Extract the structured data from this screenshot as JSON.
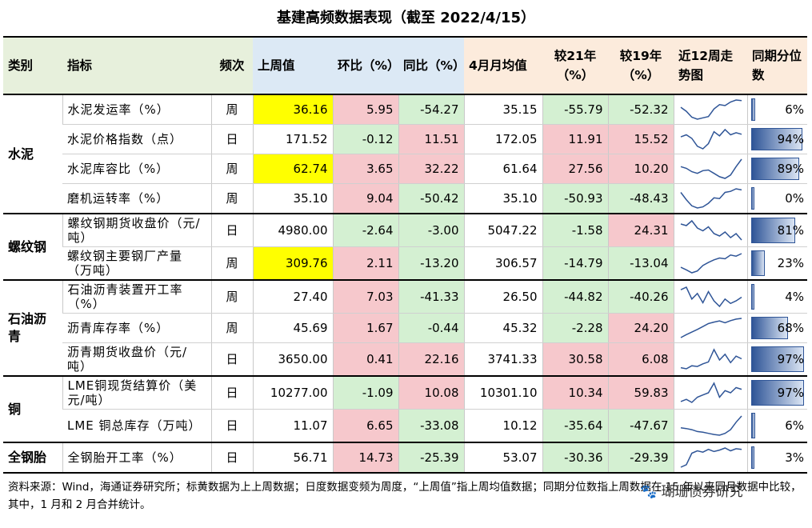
{
  "title": "基建高频数据表现（截至 2022/4/15）",
  "headers": {
    "category": "类别",
    "indicator": "指标",
    "frequency": "频次",
    "last_week": "上周值",
    "wow": "环比（%）",
    "yoy": "同比（%）",
    "april_avg": "4月月均值",
    "vs21": "较21年（%）",
    "vs19": "较19年（%）",
    "trend": "近12周走势图",
    "percentile": "同期分位数"
  },
  "colors": {
    "yellow": "#ffff00",
    "pink": "#f6c8cc",
    "green": "#d4f0d2",
    "bar": "#2f5597"
  },
  "groups": [
    {
      "name": "水泥",
      "rows": [
        {
          "indicator": "水泥发运率（%）",
          "freq": "周",
          "last": "36.16",
          "last_hl": true,
          "wow": "5.95",
          "yoy": "-54.27",
          "april": "35.15",
          "vs21": "-55.79",
          "vs19": "-52.32",
          "pct": "6%",
          "pct_value": 0.06,
          "trend": [
            50,
            38,
            20,
            14,
            18,
            22,
            45,
            58,
            55,
            66,
            72,
            70
          ]
        },
        {
          "indicator": "水泥价格指数（点）",
          "freq": "日",
          "last": "171.52",
          "last_hl": false,
          "wow": "-0.12",
          "yoy": "11.51",
          "april": "172.05",
          "vs21": "11.91",
          "vs19": "15.52",
          "pct": "94%",
          "pct_value": 0.94,
          "trend": [
            58,
            62,
            55,
            40,
            35,
            45,
            68,
            60,
            72,
            62,
            66,
            63
          ]
        },
        {
          "indicator": "水泥库容比（%）",
          "freq": "周",
          "last": "62.74",
          "last_hl": true,
          "wow": "3.65",
          "yoy": "32.22",
          "april": "61.64",
          "vs21": "27.56",
          "vs19": "10.20",
          "pct": "89%",
          "pct_value": 0.89,
          "trend": [
            50,
            45,
            35,
            30,
            38,
            40,
            30,
            20,
            15,
            25,
            50,
            72
          ]
        },
        {
          "indicator": "磨机运转率（%）",
          "freq": "周",
          "last": "35.10",
          "last_hl": false,
          "wow": "9.04",
          "yoy": "-50.42",
          "april": "35.10",
          "vs21": "-50.93",
          "vs19": "-48.43",
          "pct": "0%",
          "pct_value": 0.0,
          "trend": [
            55,
            35,
            18,
            12,
            15,
            25,
            40,
            38,
            55,
            58,
            65,
            62
          ]
        }
      ]
    },
    {
      "name": "螺纹钢",
      "rows": [
        {
          "indicator": "螺纹钢期货收盘价（元/吨）",
          "freq": "日",
          "last": "4980.00",
          "last_hl": false,
          "wow": "-2.64",
          "yoy": "-3.00",
          "april": "5047.22",
          "vs21": "-1.58",
          "vs19": "24.31",
          "pct": "81%",
          "pct_value": 0.81,
          "trend": [
            62,
            58,
            70,
            52,
            45,
            55,
            38,
            32,
            42,
            28,
            38,
            22
          ]
        },
        {
          "indicator": "螺纹钢主要钢厂产量（万吨）",
          "freq": "周",
          "last": "309.76",
          "last_hl": true,
          "wow": "2.11",
          "yoy": "-13.20",
          "april": "306.57",
          "vs21": "-14.79",
          "vs19": "-13.04",
          "pct": "23%",
          "pct_value": 0.23,
          "trend": [
            35,
            28,
            20,
            25,
            40,
            48,
            55,
            60,
            58,
            68,
            65,
            72
          ]
        }
      ]
    },
    {
      "name": "石油沥青",
      "rows": [
        {
          "indicator": "石油沥青装置开工率（%）",
          "freq": "周",
          "last": "27.40",
          "last_hl": false,
          "wow": "7.03",
          "yoy": "-41.33",
          "april": "26.50",
          "vs21": "-44.82",
          "vs19": "-40.26",
          "pct": "4%",
          "pct_value": 0.04,
          "trend": [
            65,
            72,
            40,
            55,
            30,
            60,
            35,
            20,
            40,
            28,
            35,
            45
          ]
        },
        {
          "indicator": "沥青库存率（%）",
          "freq": "周",
          "last": "45.69",
          "last_hl": false,
          "wow": "1.67",
          "yoy": "-0.44",
          "april": "45.32",
          "vs21": "-2.28",
          "vs19": "24.20",
          "pct": "68%",
          "pct_value": 0.68,
          "trend": [
            20,
            28,
            35,
            42,
            50,
            58,
            62,
            65,
            60,
            66,
            70,
            72
          ]
        },
        {
          "indicator": "沥青期货收盘价（元/吨）",
          "freq": "日",
          "last": "3650.00",
          "last_hl": false,
          "wow": "0.41",
          "yoy": "22.16",
          "april": "3741.33",
          "vs21": "30.58",
          "vs19": "6.08",
          "pct": "97%",
          "pct_value": 0.97,
          "trend": [
            25,
            22,
            30,
            28,
            35,
            40,
            72,
            45,
            60,
            38,
            55,
            48
          ]
        }
      ]
    },
    {
      "name": "铜",
      "rows": [
        {
          "indicator": "LME铜现货结算价（美元/吨）",
          "freq": "日",
          "last": "10277.00",
          "last_hl": false,
          "wow": "-1.09",
          "yoy": "10.08",
          "april": "10301.10",
          "vs21": "10.34",
          "vs19": "59.83",
          "pct": "97%",
          "pct_value": 0.97,
          "trend": [
            30,
            35,
            28,
            40,
            45,
            50,
            72,
            40,
            55,
            50,
            62,
            58
          ]
        },
        {
          "indicator": "LME 铜总库存（万吨）",
          "freq": "日",
          "last": "11.07",
          "last_hl": false,
          "wow": "6.65",
          "yoy": "-33.08",
          "april": "10.12",
          "vs21": "-35.64",
          "vs19": "-47.67",
          "pct": "6%",
          "pct_value": 0.06,
          "trend": [
            40,
            38,
            35,
            30,
            28,
            25,
            22,
            20,
            25,
            35,
            55,
            72
          ]
        }
      ]
    },
    {
      "name": "全钢胎",
      "rows": [
        {
          "indicator": "全钢胎开工率（%）",
          "freq": "日",
          "last": "56.71",
          "last_hl": false,
          "wow": "14.73",
          "yoy": "-25.39",
          "april": "53.07",
          "vs21": "-30.36",
          "vs19": "-29.39",
          "pct": "3%",
          "pct_value": 0.03,
          "trend": [
            15,
            22,
            55,
            62,
            58,
            66,
            60,
            64,
            70,
            62,
            68,
            66
          ]
        }
      ]
    }
  ],
  "footer": "资料来源：Wind，海通证券研究所；标黄数据为上上周数据；日度数据变频为周度，“上周值”指上周均值数据；同期分位数指上周数据在 15 年以来同月数据中比较，其中，1 月和 2 月合并统计。",
  "watermark": "🐾 瑚珊债券研究"
}
